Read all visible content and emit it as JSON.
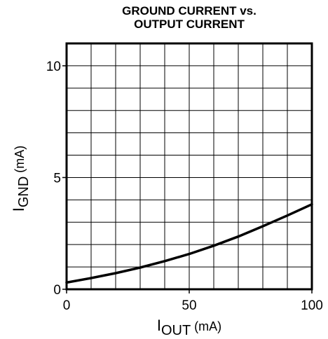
{
  "chart_data": {
    "type": "line",
    "title": [
      "GROUND CURRENT vs.",
      "OUTPUT CURRENT"
    ],
    "xlabel": {
      "main": "I",
      "sub": "OUT",
      "unit": " (mA)"
    },
    "ylabel": {
      "main": "I",
      "sub": "GND",
      "unit": " (mA)"
    },
    "xlim": [
      0,
      100
    ],
    "ylim": [
      0,
      11
    ],
    "xticks": [
      0,
      50,
      100
    ],
    "yticks": [
      0,
      5,
      10
    ],
    "grid": true,
    "grid_x_step": 10,
    "grid_y_step": 1,
    "series": [
      {
        "x": [
          0,
          10,
          20,
          30,
          40,
          50,
          60,
          70,
          80,
          90,
          100
        ],
        "y": [
          0.3,
          0.5,
          0.72,
          0.97,
          1.26,
          1.58,
          1.95,
          2.36,
          2.82,
          3.3,
          3.8
        ]
      }
    ]
  }
}
